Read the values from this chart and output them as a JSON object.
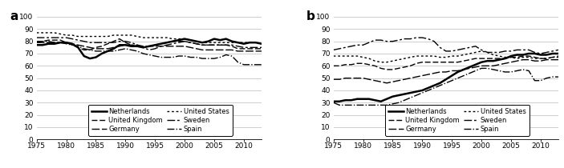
{
  "years": [
    1975,
    1976,
    1977,
    1978,
    1979,
    1980,
    1981,
    1982,
    1983,
    1984,
    1985,
    1986,
    1987,
    1988,
    1989,
    1990,
    1991,
    1992,
    1993,
    1994,
    1995,
    1996,
    1997,
    1998,
    1999,
    2000,
    2001,
    2002,
    2003,
    2004,
    2005,
    2006,
    2007,
    2008,
    2009,
    2010,
    2011,
    2012,
    2013
  ],
  "panel_a": {
    "Netherlands": [
      77,
      77,
      78,
      78,
      79,
      79,
      78,
      75,
      68,
      66,
      67,
      70,
      72,
      74,
      77,
      77,
      76,
      76,
      75,
      76,
      77,
      78,
      79,
      80,
      81,
      82,
      81,
      80,
      79,
      80,
      82,
      81,
      82,
      80,
      79,
      78,
      79,
      79,
      78
    ],
    "United Kingdom": [
      79,
      80,
      81,
      81,
      81,
      79,
      77,
      75,
      73,
      73,
      75,
      76,
      78,
      80,
      82,
      79,
      77,
      76,
      75,
      76,
      77,
      78,
      79,
      80,
      80,
      80,
      79,
      78,
      77,
      77,
      77,
      77,
      77,
      76,
      74,
      74,
      74,
      74,
      74
    ],
    "Germany": [
      79,
      79,
      79,
      79,
      79,
      79,
      78,
      77,
      76,
      75,
      74,
      74,
      74,
      75,
      76,
      77,
      77,
      77,
      76,
      76,
      76,
      76,
      76,
      76,
      76,
      76,
      75,
      74,
      73,
      73,
      73,
      73,
      73,
      73,
      72,
      72,
      72,
      72,
      72
    ],
    "United States": [
      87,
      87,
      87,
      87,
      86,
      85,
      85,
      84,
      84,
      84,
      84,
      84,
      84,
      85,
      85,
      85,
      85,
      84,
      83,
      83,
      83,
      83,
      83,
      82,
      82,
      82,
      81,
      80,
      79,
      79,
      79,
      79,
      79,
      79,
      79,
      79,
      79,
      79,
      78
    ],
    "Sweden": [
      83,
      83,
      83,
      83,
      83,
      83,
      82,
      81,
      80,
      79,
      79,
      79,
      79,
      79,
      80,
      80,
      79,
      77,
      75,
      73,
      74,
      76,
      77,
      78,
      79,
      80,
      79,
      78,
      77,
      77,
      77,
      77,
      77,
      77,
      76,
      75,
      75,
      75,
      75
    ],
    "Spain": [
      80,
      80,
      80,
      79,
      79,
      78,
      77,
      76,
      74,
      73,
      72,
      72,
      72,
      72,
      73,
      74,
      73,
      72,
      70,
      69,
      68,
      67,
      67,
      67,
      68,
      68,
      67,
      67,
      66,
      66,
      66,
      67,
      69,
      68,
      63,
      61,
      61,
      61,
      61
    ]
  },
  "panel_b": {
    "Netherlands": [
      31,
      31,
      32,
      32,
      33,
      33,
      33,
      32,
      31,
      33,
      35,
      36,
      37,
      38,
      39,
      40,
      42,
      44,
      46,
      49,
      52,
      55,
      57,
      59,
      61,
      63,
      64,
      64,
      65,
      66,
      68,
      69,
      69,
      70,
      70,
      69,
      69,
      70,
      70
    ],
    "United Kingdom": [
      60,
      60,
      61,
      61,
      62,
      62,
      61,
      60,
      58,
      57,
      57,
      58,
      59,
      60,
      62,
      63,
      63,
      63,
      63,
      63,
      63,
      63,
      64,
      65,
      66,
      66,
      66,
      66,
      66,
      66,
      67,
      67,
      68,
      68,
      67,
      66,
      66,
      67,
      67
    ],
    "Germany": [
      49,
      49,
      50,
      50,
      50,
      50,
      49,
      48,
      47,
      46,
      47,
      48,
      49,
      50,
      51,
      52,
      53,
      54,
      55,
      55,
      56,
      56,
      57,
      58,
      59,
      60,
      60,
      60,
      61,
      62,
      63,
      64,
      65,
      65,
      64,
      64,
      65,
      65,
      65
    ],
    "United States": [
      68,
      68,
      68,
      68,
      68,
      67,
      66,
      64,
      63,
      63,
      64,
      65,
      66,
      67,
      68,
      68,
      68,
      68,
      67,
      67,
      68,
      68,
      69,
      70,
      71,
      72,
      71,
      69,
      68,
      67,
      67,
      66,
      67,
      67,
      66,
      66,
      66,
      67,
      68
    ],
    "Sweden": [
      73,
      74,
      75,
      76,
      77,
      77,
      79,
      81,
      81,
      80,
      80,
      81,
      82,
      82,
      83,
      83,
      82,
      80,
      75,
      72,
      72,
      73,
      74,
      75,
      76,
      73,
      71,
      71,
      71,
      72,
      72,
      73,
      73,
      73,
      71,
      70,
      71,
      72,
      73
    ],
    "Spain": [
      30,
      28,
      28,
      28,
      28,
      28,
      28,
      28,
      28,
      28,
      29,
      30,
      32,
      34,
      36,
      38,
      40,
      42,
      44,
      46,
      48,
      50,
      52,
      54,
      56,
      58,
      58,
      57,
      56,
      55,
      55,
      56,
      57,
      56,
      48,
      48,
      50,
      51,
      51
    ]
  },
  "xlim": [
    1975,
    2013
  ],
  "ylim": [
    0,
    100
  ],
  "xticks": [
    1975,
    1980,
    1985,
    1990,
    1995,
    2000,
    2005,
    2010
  ],
  "yticks": [
    0,
    10,
    20,
    30,
    40,
    50,
    60,
    70,
    80,
    90,
    100
  ],
  "label_a": "a",
  "label_b": "b",
  "bg_color": "white",
  "fontsize_tick": 6.5,
  "fontsize_legend": 6.0
}
